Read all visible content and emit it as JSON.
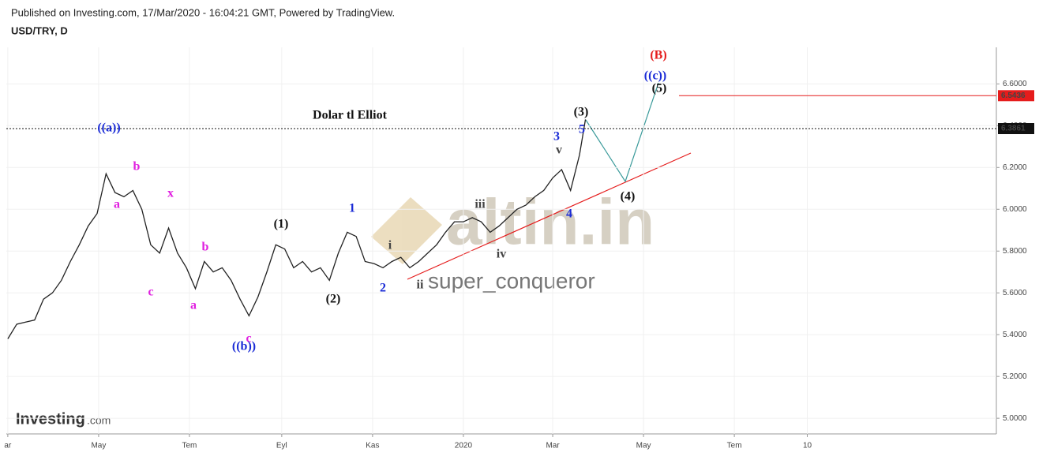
{
  "header": {
    "published": "Published on Investing.com, 17/Mar/2020 - 16:04:21 GMT, Powered by TradingView.",
    "symbol": "USD/TRY, D"
  },
  "watermarks": {
    "site": "altin.in",
    "author": "super_conqueror",
    "logo": "Investing",
    "logo_suffix": ".com"
  },
  "chart_data": {
    "type": "line",
    "color": "#222222",
    "x": [
      0,
      6,
      12,
      18,
      24,
      30,
      36,
      42,
      48,
      54,
      60,
      66,
      72,
      78,
      84,
      90,
      96,
      102,
      108,
      114,
      120,
      126,
      132,
      138,
      144,
      150,
      156,
      162,
      168,
      174,
      180,
      186,
      192,
      198,
      204,
      210,
      216,
      222,
      228,
      234,
      240,
      246,
      252,
      258,
      264,
      270,
      276,
      282,
      288,
      294,
      300,
      306,
      312,
      318,
      324,
      330,
      336,
      342,
      348,
      354,
      360,
      366,
      372,
      378,
      384,
      388
    ],
    "values": [
      5.38,
      5.45,
      5.46,
      5.47,
      5.57,
      5.6,
      5.66,
      5.75,
      5.83,
      5.92,
      5.98,
      6.17,
      6.08,
      6.06,
      6.09,
      6.0,
      5.83,
      5.79,
      5.91,
      5.79,
      5.72,
      5.62,
      5.75,
      5.7,
      5.72,
      5.66,
      5.57,
      5.49,
      5.58,
      5.7,
      5.83,
      5.81,
      5.72,
      5.75,
      5.7,
      5.72,
      5.66,
      5.79,
      5.89,
      5.87,
      5.75,
      5.74,
      5.72,
      5.75,
      5.77,
      5.72,
      5.75,
      5.79,
      5.83,
      5.89,
      5.94,
      5.94,
      5.96,
      5.94,
      5.89,
      5.92,
      5.96,
      6.0,
      6.02,
      6.06,
      6.09,
      6.15,
      6.19,
      6.09,
      6.26,
      6.43
    ],
    "xlim": [
      -1,
      664
    ],
    "ylim": [
      4.925,
      6.775
    ],
    "xticks": [
      {
        "value": 0,
        "label": "ar"
      },
      {
        "value": 61,
        "label": "May"
      },
      {
        "value": 122,
        "label": "Tem"
      },
      {
        "value": 184,
        "label": "Eyl"
      },
      {
        "value": 245,
        "label": "Kas"
      },
      {
        "value": 306,
        "label": "2020"
      },
      {
        "value": 366,
        "label": "Mar"
      },
      {
        "value": 427,
        "label": "May"
      },
      {
        "value": 488,
        "label": "Tem"
      },
      {
        "value": 537,
        "label": "10"
      }
    ],
    "yticks": [
      {
        "value": 5.0,
        "label": "5.0000"
      },
      {
        "value": 5.2,
        "label": "5.2000"
      },
      {
        "value": 5.4,
        "label": "5.4000"
      },
      {
        "value": 5.6,
        "label": "5.6000"
      },
      {
        "value": 5.8,
        "label": "5.8000"
      },
      {
        "value": 6.0,
        "label": "6.0000"
      },
      {
        "value": 6.2,
        "label": "6.2000"
      },
      {
        "value": 6.4,
        "label": "6.4000"
      },
      {
        "value": 6.6,
        "label": "6.6000"
      }
    ],
    "price_lines": [
      {
        "value": 6.5436,
        "color": "#e51c1c",
        "style": "solid"
      },
      {
        "value": 6.3861,
        "color": "#111111",
        "style": "dotted"
      }
    ],
    "annotations": [
      {
        "text": "Dolar tl Elliot",
        "color": "#111111"
      },
      {
        "text": "((a))",
        "color": "#1a2bd6"
      },
      {
        "text": "a",
        "color": "#e020e0"
      },
      {
        "text": "b",
        "color": "#e020e0"
      },
      {
        "text": "c",
        "color": "#e020e0"
      },
      {
        "text": "x",
        "color": "#e020e0"
      },
      {
        "text": "b",
        "color": "#e020e0"
      },
      {
        "text": "a",
        "color": "#e020e0"
      },
      {
        "text": "c",
        "color": "#e020e0"
      },
      {
        "text": "((b))",
        "color": "#1a2bd6"
      },
      {
        "text": "(1)",
        "color": "#111111"
      },
      {
        "text": "(2)",
        "color": "#111111"
      },
      {
        "text": "1",
        "color": "#1a2bd6"
      },
      {
        "text": "2",
        "color": "#1a2bd6"
      },
      {
        "text": "i",
        "color": "#444444"
      },
      {
        "text": "ii",
        "color": "#444444"
      },
      {
        "text": "iii",
        "color": "#444444"
      },
      {
        "text": "iv",
        "color": "#444444"
      },
      {
        "text": "v",
        "color": "#444444"
      },
      {
        "text": "3",
        "color": "#1a2bd6"
      },
      {
        "text": "5",
        "color": "#1a2bd6"
      },
      {
        "text": "4",
        "color": "#1a2bd6"
      },
      {
        "text": "(3)",
        "color": "#111111"
      },
      {
        "text": "(4)",
        "color": "#111111"
      },
      {
        "text": "(5)",
        "color": "#111111"
      },
      {
        "text": "((c))",
        "color": "#1a2bd6"
      },
      {
        "text": "(B)",
        "color": "#e51c1c"
      }
    ]
  }
}
